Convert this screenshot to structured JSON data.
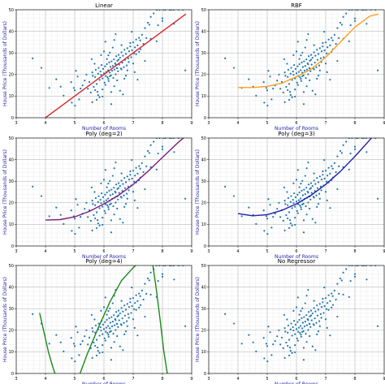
{
  "colors": {
    "points": "#1f77b4",
    "axis_labels": "#1f1fa8",
    "grid_major": "#b0b0b0",
    "grid_minor": "#e0e0e0"
  },
  "chart_data": [
    {
      "type": "scatter",
      "title": "Linear",
      "xlabel": "Number of Rooms",
      "ylabel": "House Price (Thousands of Dollars)",
      "xlim": [
        3,
        9
      ],
      "ylim": [
        0,
        50
      ],
      "xticks": [
        3,
        4,
        5,
        6,
        7,
        8,
        9
      ],
      "yticks": [
        0,
        10,
        20,
        30,
        40,
        50
      ],
      "grid": true,
      "fit": {
        "name": "Linear",
        "color": "#d62728",
        "x": [
          4.0,
          8.8
        ],
        "y": [
          0.0,
          48.0
        ]
      }
    },
    {
      "type": "scatter",
      "title": "RBF",
      "xlabel": "Number of Rooms",
      "ylabel": "House Price (Thousands of Dollars)",
      "xlim": [
        3,
        9
      ],
      "ylim": [
        0,
        50
      ],
      "xticks": [
        3,
        4,
        5,
        6,
        7,
        8,
        9
      ],
      "yticks": [
        0,
        10,
        20,
        30,
        40,
        50
      ],
      "grid": true,
      "fit": {
        "name": "RBF",
        "color": "#ff9f1c",
        "x": [
          4.0,
          4.5,
          5.0,
          5.5,
          6.0,
          6.5,
          7.0,
          7.5,
          8.0,
          8.5,
          8.8
        ],
        "y": [
          14,
          14,
          14.5,
          16,
          19,
          22.5,
          28,
          35,
          42,
          47,
          48
        ]
      }
    },
    {
      "type": "scatter",
      "title": "Poly (deg=2)",
      "xlabel": "Number of Rooms",
      "ylabel": "House Price (Thousands of Dollars)",
      "xlim": [
        3,
        9
      ],
      "ylim": [
        0,
        50
      ],
      "xticks": [
        3,
        4,
        5,
        6,
        7,
        8,
        9
      ],
      "yticks": [
        0,
        10,
        20,
        30,
        40,
        50
      ],
      "grid": true,
      "fit": {
        "name": "Poly (deg=2)",
        "color": "#7b1f7a",
        "x": [
          4.0,
          4.5,
          5.0,
          5.5,
          6.0,
          6.5,
          7.0,
          7.5,
          8.0,
          8.5,
          8.8
        ],
        "y": [
          12,
          12.2,
          13.5,
          16,
          19.5,
          23.5,
          28.5,
          34.5,
          41,
          47.5,
          51
        ]
      }
    },
    {
      "type": "scatter",
      "title": "Poly (deg=3)",
      "xlabel": "Number of Rooms",
      "ylabel": "House Price (Thousands of Dollars)",
      "xlim": [
        3,
        9
      ],
      "ylim": [
        0,
        50
      ],
      "xticks": [
        3,
        4,
        5,
        6,
        7,
        8,
        9
      ],
      "yticks": [
        0,
        10,
        20,
        30,
        40,
        50
      ],
      "grid": true,
      "fit": {
        "name": "Poly (deg=3)",
        "color": "#1f1fa8",
        "x": [
          4.0,
          4.5,
          5.0,
          5.5,
          6.0,
          6.5,
          7.0,
          7.5,
          8.0,
          8.5,
          8.8
        ],
        "y": [
          15,
          14,
          14.5,
          16.5,
          19.5,
          23.5,
          28.5,
          34.5,
          41.5,
          49,
          54
        ]
      }
    },
    {
      "type": "scatter",
      "title": "Poly (deg=4)",
      "xlabel": "Number of Rooms",
      "ylabel": "House Price (Thousands of Dollars)",
      "xlim": [
        3,
        9
      ],
      "ylim": [
        0,
        50
      ],
      "xticks": [
        3,
        4,
        5,
        6,
        7,
        8,
        9
      ],
      "yticks": [
        0,
        10,
        20,
        30,
        40,
        50
      ],
      "grid": true,
      "fit": {
        "name": "Poly (deg=4)",
        "color": "#1a8a1a",
        "segments": [
          {
            "x": [
              3.8,
              3.95,
              4.1,
              4.25,
              4.4
            ],
            "y": [
              28,
              19,
              10,
              3,
              -3
            ]
          },
          {
            "x": [
              5.1,
              5.4,
              5.8,
              6.2,
              6.6,
              7.0,
              7.25
            ],
            "y": [
              -3,
              8,
              21,
              33,
              43,
              49,
              52
            ]
          },
          {
            "x": [
              7.65,
              7.78,
              7.92,
              8.05,
              8.2
            ],
            "y": [
              52,
              40,
              25,
              10,
              -3
            ]
          }
        ]
      }
    },
    {
      "type": "scatter",
      "title": "No Regressor",
      "xlabel": "Number of Rooms",
      "ylabel": "House Price (Thousands of Dollars)",
      "xlim": [
        3,
        9
      ],
      "ylim": [
        0,
        50
      ],
      "xticks": [
        3,
        4,
        5,
        6,
        7,
        8,
        9
      ],
      "yticks": [
        0,
        10,
        20,
        30,
        40,
        50
      ],
      "grid": true,
      "fit": null
    }
  ],
  "scatter_points": {
    "x": [
      3.56,
      3.86,
      4.13,
      4.37,
      4.52,
      4.62,
      4.88,
      4.9,
      4.97,
      5.0,
      5.01,
      5.04,
      5.1,
      5.15,
      5.2,
      5.27,
      5.34,
      5.4,
      5.45,
      5.5,
      5.55,
      5.58,
      5.6,
      5.62,
      5.65,
      5.68,
      5.7,
      5.72,
      5.75,
      5.78,
      5.8,
      5.82,
      5.85,
      5.88,
      5.9,
      5.92,
      5.95,
      5.97,
      6.0,
      6.02,
      6.04,
      6.06,
      6.08,
      6.1,
      6.12,
      6.14,
      6.16,
      6.18,
      6.2,
      6.22,
      6.24,
      6.26,
      6.28,
      6.3,
      6.32,
      6.34,
      6.36,
      6.38,
      6.4,
      6.42,
      6.44,
      6.46,
      6.48,
      6.5,
      6.52,
      6.55,
      6.58,
      6.6,
      6.63,
      6.65,
      6.68,
      6.7,
      6.72,
      6.75,
      6.78,
      6.8,
      6.83,
      6.86,
      6.9,
      6.93,
      6.96,
      7.0,
      7.03,
      7.06,
      7.1,
      7.15,
      7.2,
      7.24,
      7.3,
      7.35,
      7.4,
      7.45,
      7.5,
      7.55,
      7.6,
      7.7,
      7.8,
      7.85,
      7.9,
      8.0,
      8.04,
      8.1,
      8.25,
      8.3,
      8.38,
      8.4,
      8.55,
      8.7,
      8.78,
      5.95,
      6.05,
      6.15,
      6.25,
      6.35,
      6.45,
      6.55,
      6.65,
      6.75,
      5.85,
      5.75,
      6.1,
      6.2,
      6.3,
      6.4,
      6.5,
      6.6,
      6.7,
      5.9,
      6.0,
      6.2,
      6.4,
      6.6,
      6.8,
      7.0,
      7.2,
      5.6,
      5.7,
      5.8,
      6.9,
      7.1,
      7.25,
      7.4,
      7.6,
      7.8,
      8.0,
      6.95,
      7.05,
      7.15,
      6.85,
      6.25,
      6.15,
      6.05,
      5.95,
      6.45,
      6.35
    ],
    "y": [
      27.5,
      23.1,
      13.8,
      17.8,
      14.4,
      10.2,
      16.5,
      7.0,
      13.8,
      12.7,
      5.6,
      21.7,
      19.1,
      8.5,
      13.5,
      15.0,
      17.2,
      20.0,
      13.4,
      16.6,
      11.7,
      27.1,
      21.0,
      19.4,
      14.3,
      25.0,
      18.9,
      22.2,
      15.6,
      12.0,
      20.4,
      23.1,
      17.5,
      21.4,
      19.9,
      24.4,
      18.2,
      22.6,
      20.6,
      16.2,
      23.8,
      19.3,
      21.2,
      24.8,
      18.8,
      22.0,
      17.0,
      25.6,
      20.9,
      23.5,
      19.6,
      26.1,
      21.8,
      24.0,
      18.4,
      27.0,
      22.3,
      25.2,
      20.1,
      28.5,
      23.0,
      26.4,
      21.5,
      29.1,
      24.6,
      27.8,
      22.8,
      30.3,
      25.5,
      28.7,
      23.4,
      31.5,
      26.8,
      29.5,
      24.2,
      32.2,
      27.5,
      30.8,
      33.0,
      28.0,
      31.2,
      34.9,
      29.8,
      32.6,
      36.2,
      33.5,
      37.0,
      35.8,
      38.4,
      34.2,
      41.5,
      36.9,
      44.0,
      43.1,
      46.7,
      48.3,
      50.0,
      42.8,
      50.0,
      44.8,
      50.0,
      50.0,
      50.0,
      50.0,
      50.0,
      43.5,
      50.0,
      50.0,
      21.9,
      13.1,
      15.2,
      18.0,
      11.9,
      14.6,
      17.3,
      12.5,
      10.8,
      19.5,
      9.5,
      8.3,
      27.2,
      30.1,
      32.5,
      24.7,
      26.9,
      33.6,
      18.1,
      29.0,
      30.7,
      19.2,
      38.7,
      22.4,
      21.9,
      25.1,
      30.5,
      7.2,
      12.8,
      10.5,
      34.6,
      29.4,
      31.7,
      26.3,
      36.5,
      35.4,
      46.0,
      39.8,
      21.1,
      17.6,
      25.8,
      6.3,
      28.9,
      35.2,
      9.8,
      22.9,
      36.0
    ]
  }
}
